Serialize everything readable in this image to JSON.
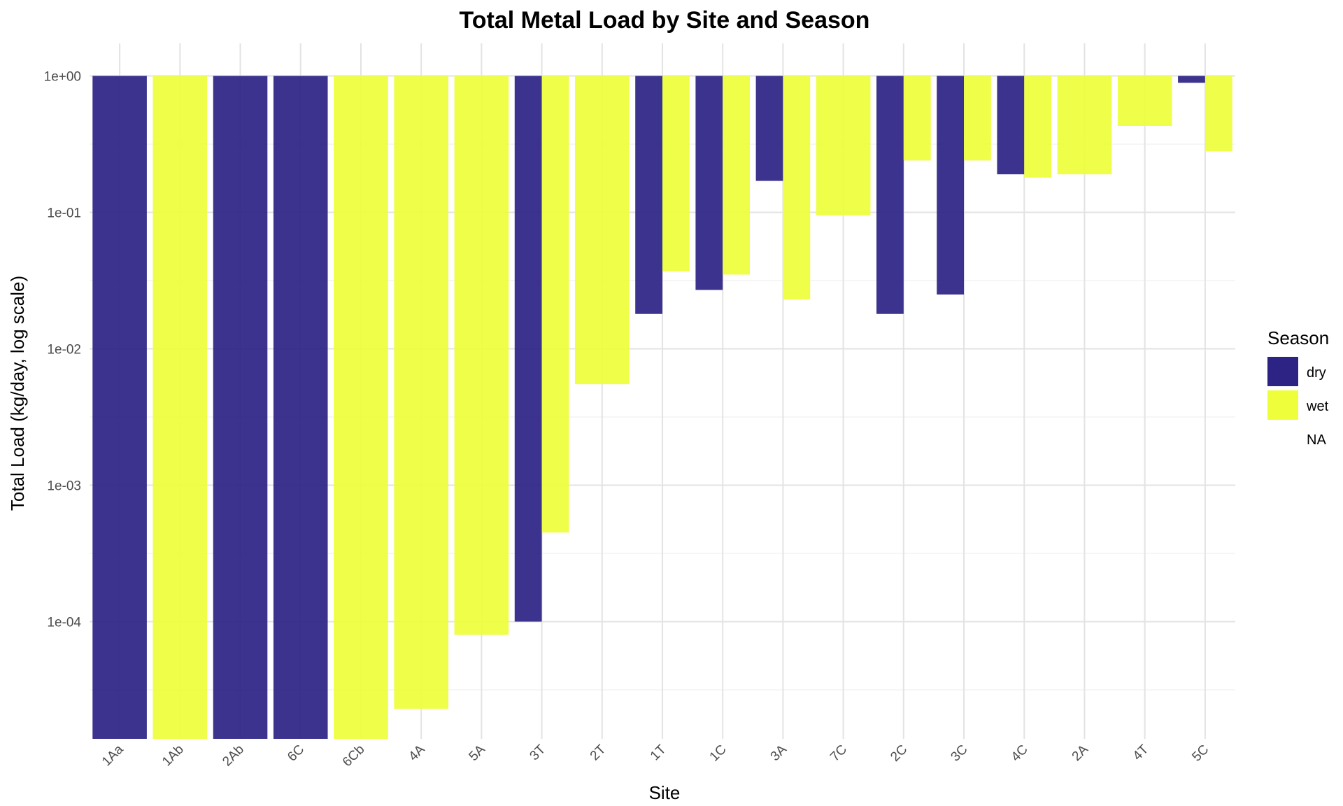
{
  "chart_data": {
    "type": "bar",
    "title": "Total Metal Load by Site and Season",
    "xlabel": "Site",
    "ylabel": "Total Load (kg/day, log scale)",
    "log_scale_y": true,
    "ylim": [
      1.3e-05,
      1.6
    ],
    "y_ticks": [
      0.0001,
      0.001,
      0.01,
      0.1,
      1
    ],
    "y_tick_labels": [
      "1e-04",
      "1e-03",
      "1e-02",
      "1e-01",
      "1e+00"
    ],
    "grid": true,
    "legend": {
      "title": "Season",
      "position": "right",
      "entries": [
        {
          "label": "dry",
          "color": "#2d2385"
        },
        {
          "label": "wet",
          "color": "#eefe3a"
        },
        {
          "label": "NA",
          "color": "none"
        }
      ]
    },
    "categories": [
      "1Aa",
      "1Ab",
      "2Ab",
      "6C",
      "6Cb",
      "4A",
      "5A",
      "3T",
      "2T",
      "1T",
      "1C",
      "3A",
      "7C",
      "2C",
      "3C",
      "4C",
      "2A",
      "4T",
      "5C"
    ],
    "series": [
      {
        "name": "dry",
        "values": [
          1.3e-05,
          null,
          1.3e-05,
          1.3e-05,
          null,
          null,
          null,
          0.0001,
          null,
          0.018,
          0.027,
          0.17,
          null,
          0.018,
          0.025,
          0.19,
          null,
          null,
          0.89
        ]
      },
      {
        "name": "wet",
        "values": [
          null,
          1.3e-05,
          null,
          null,
          1.3e-05,
          2.3e-05,
          8e-05,
          0.00045,
          0.0055,
          0.037,
          0.035,
          0.023,
          0.095,
          0.24,
          0.24,
          0.18,
          0.19,
          0.43,
          0.28
        ]
      }
    ]
  }
}
